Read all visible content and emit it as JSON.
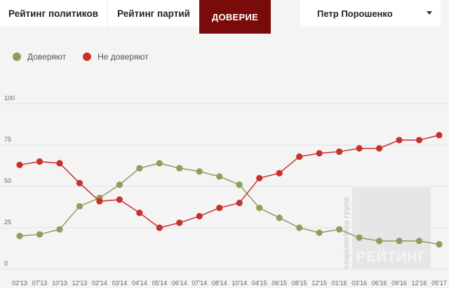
{
  "tabs": [
    {
      "label": "Рейтинг политиков"
    },
    {
      "label": "Рейтинг партий"
    },
    {
      "label": "Доверие"
    }
  ],
  "selector": {
    "value": "Петр Порошенко"
  },
  "colors": {
    "trust": "#8aa05a",
    "distrust": "#c8302c",
    "active_tab": "#7a0b0b"
  },
  "watermark": {
    "side": "соціологічна група",
    "main": "РЕЙТИНГ"
  },
  "chart_data": {
    "type": "line",
    "title": "",
    "xlabel": "",
    "ylabel": "",
    "ylim": [
      0,
      100
    ],
    "yticks": [
      0,
      25,
      50,
      75,
      100
    ],
    "grid": true,
    "legend": "top-left",
    "categories": [
      "02'13",
      "07'13",
      "10'13",
      "12'13",
      "02'14",
      "03'14",
      "04'14",
      "05'14",
      "06'14",
      "07'14",
      "08'14",
      "10'14",
      "04'15",
      "06'15",
      "08'15",
      "12'15",
      "01'16",
      "03'16",
      "06'16",
      "09'16",
      "12'16",
      "05'17"
    ],
    "series": [
      {
        "name": "Доверяют",
        "values": [
          20,
          21,
          24,
          38,
          43,
          51,
          61,
          64,
          61,
          59,
          56,
          51,
          37,
          31,
          25,
          22,
          24,
          19,
          17,
          17,
          17,
          15
        ]
      },
      {
        "name": "Не доверяют",
        "values": [
          63,
          65,
          64,
          52,
          41,
          42,
          34,
          25,
          28,
          32,
          37,
          40,
          55,
          58,
          68,
          70,
          71,
          73,
          73,
          78,
          78,
          81
        ]
      }
    ]
  }
}
